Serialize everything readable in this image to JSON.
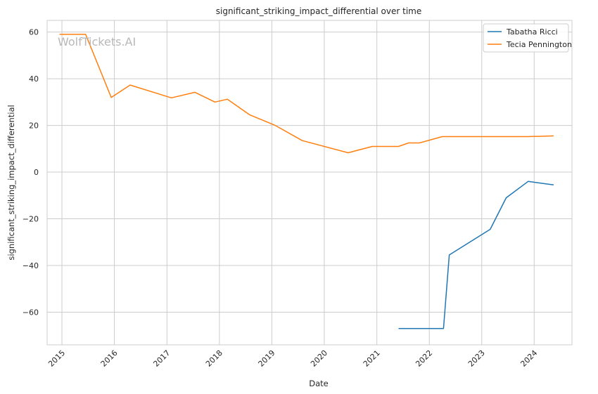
{
  "chart_data": {
    "type": "line",
    "title": "significant_striking_impact_differential over time",
    "xlabel": "Date",
    "ylabel": "significant_striking_impact_differential",
    "watermark": "WolfTickets.AI",
    "x_ticks": [
      "2015",
      "2016",
      "2017",
      "2018",
      "2019",
      "2020",
      "2021",
      "2022",
      "2023",
      "2024"
    ],
    "y_ticks": [
      60,
      40,
      20,
      0,
      -20,
      -40,
      -60
    ],
    "y_tick_labels": [
      "60",
      "40",
      "20",
      "0",
      "−20",
      "−40",
      "−60"
    ],
    "xlim": [
      "2014-09-20",
      "2024-09-20"
    ],
    "ylim": [
      -74,
      65
    ],
    "grid": true,
    "legend_position": "top-right",
    "series": [
      {
        "name": "Tabatha Ricci",
        "color": "#1f77b4",
        "points": [
          {
            "x": "2021-06-01",
            "y": -67
          },
          {
            "x": "2022-04-10",
            "y": -67
          },
          {
            "x": "2022-05-20",
            "y": -35.5
          },
          {
            "x": "2023-03-01",
            "y": -24.5
          },
          {
            "x": "2023-06-20",
            "y": -11
          },
          {
            "x": "2023-11-20",
            "y": -4
          },
          {
            "x": "2024-05-15",
            "y": -5.5
          }
        ]
      },
      {
        "name": "Tecia Pennington",
        "color": "#ff7f0e",
        "points": [
          {
            "x": "2014-12-15",
            "y": 59
          },
          {
            "x": "2015-06-15",
            "y": 59
          },
          {
            "x": "2015-12-10",
            "y": 32
          },
          {
            "x": "2016-04-20",
            "y": 37.3
          },
          {
            "x": "2017-02-01",
            "y": 31.8
          },
          {
            "x": "2017-07-15",
            "y": 34.2
          },
          {
            "x": "2017-12-01",
            "y": 30
          },
          {
            "x": "2018-02-25",
            "y": 31.2
          },
          {
            "x": "2018-08-01",
            "y": 24.5
          },
          {
            "x": "2019-01-25",
            "y": 20
          },
          {
            "x": "2019-08-01",
            "y": 13.5
          },
          {
            "x": "2020-06-15",
            "y": 8.3
          },
          {
            "x": "2020-12-01",
            "y": 11
          },
          {
            "x": "2021-06-01",
            "y": 11
          },
          {
            "x": "2021-08-10",
            "y": 12.5
          },
          {
            "x": "2021-10-25",
            "y": 12.5
          },
          {
            "x": "2022-04-01",
            "y": 15.2
          },
          {
            "x": "2023-11-20",
            "y": 15.2
          },
          {
            "x": "2024-05-15",
            "y": 15.5
          }
        ]
      }
    ]
  }
}
